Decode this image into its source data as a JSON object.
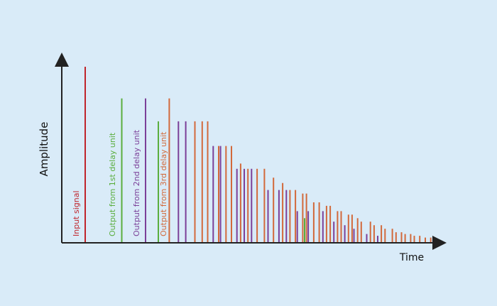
{
  "axes": {
    "x_label": "Time",
    "y_label": "Amplitude"
  },
  "labels": {
    "input": "Input signal",
    "first": "Output from 1st delay unit",
    "second": "Output from 2nd delay unit",
    "third": "Output from 3rd delay unit"
  },
  "colors": {
    "background": "#d9ebf8",
    "axis": "#222222",
    "input": "#c0242b",
    "first": "#5aae3e",
    "second": "#7b3f98",
    "third": "#d2693b"
  },
  "chart_data": {
    "type": "bar",
    "x_unit": "time",
    "y_unit": "amplitude (relative to input = 1.0)",
    "series": [
      {
        "name": "Input signal",
        "color_key": "input",
        "x": [
          0.0
        ],
        "values": [
          1.0
        ]
      },
      {
        "name": "Output from 1st delay unit",
        "color_key": "first",
        "x": [
          1.0,
          2.0,
          3.0,
          4.0,
          5.0,
          6.0,
          7.0
        ],
        "values": [
          0.82,
          0.69,
          0.55,
          0.42,
          0.28,
          0.14,
          0.05
        ]
      },
      {
        "name": "Output from 2nd delay unit",
        "color_key": "second",
        "x": [
          1.65,
          2.55,
          2.75,
          3.5,
          3.7,
          4.15,
          4.35,
          4.55,
          5.0,
          5.3,
          5.5,
          5.8,
          6.1,
          6.5,
          6.8,
          7.1,
          7.35,
          7.7,
          8.0
        ],
        "values": [
          0.82,
          0.69,
          0.69,
          0.55,
          0.55,
          0.42,
          0.42,
          0.42,
          0.3,
          0.3,
          0.3,
          0.18,
          0.18,
          0.18,
          0.12,
          0.1,
          0.08,
          0.05,
          0.04
        ]
      },
      {
        "name": "Output from 3rd delay unit",
        "color_key": "third",
        "x": [
          2.3,
          3.0,
          3.2,
          3.35,
          3.65,
          3.85,
          4.0,
          4.25,
          4.45,
          4.7,
          4.9,
          5.15,
          5.4,
          5.6,
          5.75,
          5.95,
          6.05,
          6.25,
          6.4,
          6.6,
          6.7,
          6.9,
          7.0,
          7.2,
          7.3,
          7.45,
          7.55,
          7.8,
          7.9,
          8.1,
          8.2,
          8.4,
          8.5,
          8.65,
          8.75,
          8.9,
          9.0,
          9.15,
          9.3,
          9.45,
          9.6
        ],
        "values": [
          0.82,
          0.69,
          0.69,
          0.69,
          0.55,
          0.55,
          0.55,
          0.45,
          0.42,
          0.42,
          0.42,
          0.37,
          0.34,
          0.3,
          0.3,
          0.28,
          0.28,
          0.23,
          0.23,
          0.21,
          0.21,
          0.18,
          0.18,
          0.16,
          0.16,
          0.14,
          0.12,
          0.12,
          0.1,
          0.1,
          0.08,
          0.08,
          0.06,
          0.06,
          0.05,
          0.05,
          0.04,
          0.04,
          0.03,
          0.03,
          0.02
        ]
      }
    ]
  }
}
